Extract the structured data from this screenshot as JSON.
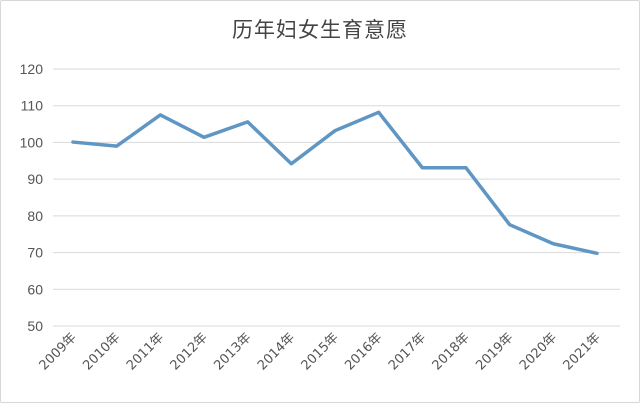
{
  "chart_data": {
    "type": "line",
    "title": "历年妇女生育意愿",
    "xlabel": "",
    "ylabel": "",
    "categories": [
      "2009年",
      "2010年",
      "2011年",
      "2012年",
      "2013年",
      "2014年",
      "2015年",
      "2016年",
      "2017年",
      "2018年",
      "2019年",
      "2020年",
      "2021年"
    ],
    "series": [
      {
        "values": [
          100.1,
          99.0,
          107.5,
          101.4,
          105.6,
          94.2,
          103.2,
          108.2,
          93.1,
          93.1,
          77.6,
          72.4,
          69.8
        ],
        "color": "#6096c4"
      }
    ],
    "ylim": [
      50,
      120
    ],
    "yticks": [
      50,
      60,
      70,
      80,
      90,
      100,
      110,
      120
    ],
    "grid": true,
    "legend": "none"
  }
}
